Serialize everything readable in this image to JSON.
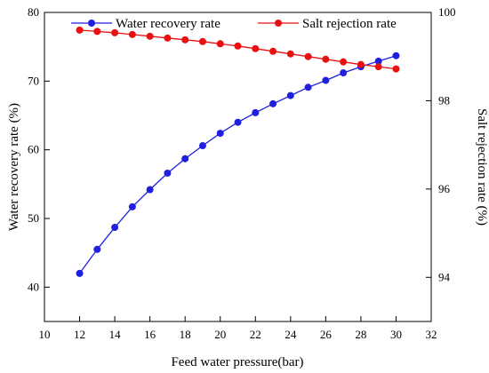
{
  "chart_data": {
    "type": "line",
    "title": "",
    "xlabel": "Feed water pressure(bar)",
    "ylabel_left": "Water recovery rate (%)",
    "ylabel_right": "Salt rejection rate (%)",
    "xlim": [
      10,
      32
    ],
    "ylim_left": [
      35,
      80
    ],
    "ylim_right": [
      93,
      100
    ],
    "x_ticks": [
      10,
      12,
      14,
      16,
      18,
      20,
      22,
      24,
      26,
      28,
      30,
      32
    ],
    "y_left_ticks": [
      40,
      50,
      60,
      70,
      80
    ],
    "y_right_ticks": [
      94,
      96,
      98,
      100
    ],
    "grid": false,
    "legend_position": "top",
    "x": [
      12,
      13,
      14,
      15,
      16,
      17,
      18,
      19,
      20,
      21,
      22,
      23,
      24,
      25,
      26,
      27,
      28,
      29,
      30
    ],
    "series": [
      {
        "name": "Water recovery rate",
        "axis": "left",
        "color": "#1f1fe0",
        "values": [
          42.0,
          45.5,
          48.7,
          51.7,
          54.2,
          56.6,
          58.7,
          60.6,
          62.4,
          64.0,
          65.4,
          66.7,
          67.9,
          69.1,
          70.1,
          71.2,
          72.1,
          72.9,
          73.7
        ]
      },
      {
        "name": "Salt rejection rate",
        "axis": "right",
        "color": "#e81010",
        "values": [
          99.6,
          99.57,
          99.54,
          99.5,
          99.46,
          99.42,
          99.38,
          99.34,
          99.29,
          99.24,
          99.18,
          99.12,
          99.06,
          99.0,
          98.94,
          98.88,
          98.82,
          98.77,
          98.72
        ]
      }
    ]
  }
}
